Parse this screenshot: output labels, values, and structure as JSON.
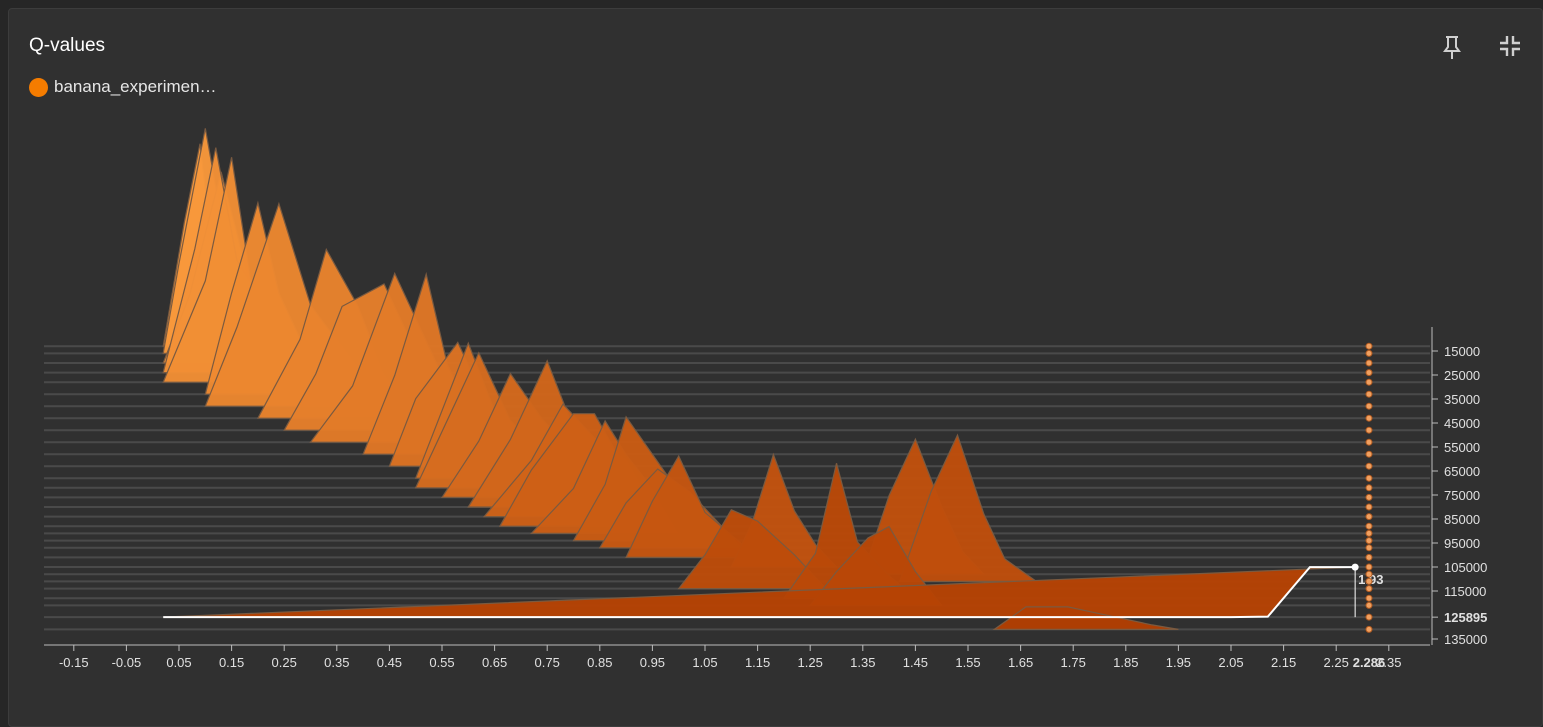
{
  "card": {
    "title": "Q-values",
    "legend_label": "banana_experimen…",
    "legend_color": "#f57c00"
  },
  "icons": {
    "pin": "pin-icon",
    "collapse": "collapse-icon"
  },
  "tooltip": {
    "value": "1.93",
    "step": "125895",
    "x_value": "2.286"
  },
  "chart_data": {
    "type": "area",
    "mode": "offset-histogram",
    "title": "Q-values",
    "xlim": [
      -0.2,
      2.4
    ],
    "x_ticks": [
      "-0.15",
      "-0.05",
      "0.05",
      "0.15",
      "0.25",
      "0.35",
      "0.45",
      "0.55",
      "0.65",
      "0.75",
      "0.85",
      "0.95",
      "1.05",
      "1.15",
      "1.25",
      "1.35",
      "1.45",
      "1.55",
      "1.65",
      "1.75",
      "1.85",
      "1.95",
      "2.05",
      "2.15",
      "2.25",
      "2.35"
    ],
    "step_ticks": [
      "15000",
      "25000",
      "35000",
      "45000",
      "55000",
      "65000",
      "75000",
      "85000",
      "95000",
      "105000",
      "115000",
      "125895",
      "135000"
    ],
    "step_range": [
      5000,
      135000
    ],
    "series": [
      {
        "step": 13000,
        "points": [
          [
            0.02,
            0
          ],
          [
            0.06,
            0.55
          ],
          [
            0.09,
            0.9
          ],
          [
            0.12,
            0.3
          ],
          [
            0.15,
            0.15
          ],
          [
            0.2,
            0.3
          ],
          [
            0.28,
            0
          ]
        ]
      },
      {
        "step": 16000,
        "points": [
          [
            0.02,
            0
          ],
          [
            0.05,
            0.4
          ],
          [
            0.1,
            1
          ],
          [
            0.15,
            0.35
          ],
          [
            0.2,
            0.2
          ],
          [
            0.25,
            0
          ]
        ]
      },
      {
        "step": 20000,
        "points": [
          [
            0.02,
            0
          ],
          [
            0.07,
            0.3
          ],
          [
            0.13,
            0.85
          ],
          [
            0.18,
            0.4
          ],
          [
            0.23,
            0.2
          ],
          [
            0.28,
            0
          ]
        ]
      },
      {
        "step": 24000,
        "points": [
          [
            0.02,
            0
          ],
          [
            0.08,
            0.55
          ],
          [
            0.12,
            1
          ],
          [
            0.16,
            0.5
          ],
          [
            0.2,
            0.35
          ],
          [
            0.27,
            0
          ]
        ]
      },
      {
        "step": 28000,
        "points": [
          [
            0.02,
            0
          ],
          [
            0.1,
            0.45
          ],
          [
            0.15,
            1
          ],
          [
            0.19,
            0.4
          ],
          [
            0.24,
            0.25
          ],
          [
            0.3,
            0
          ]
        ]
      },
      {
        "step": 33000,
        "points": [
          [
            0.1,
            0
          ],
          [
            0.15,
            0.45
          ],
          [
            0.2,
            0.85
          ],
          [
            0.24,
            0.45
          ],
          [
            0.29,
            0.2
          ],
          [
            0.34,
            0
          ]
        ]
      },
      {
        "step": 38000,
        "points": [
          [
            0.1,
            0
          ],
          [
            0.16,
            0.35
          ],
          [
            0.24,
            0.9
          ],
          [
            0.3,
            0.45
          ],
          [
            0.38,
            0.2
          ],
          [
            0.45,
            0
          ]
        ]
      },
      {
        "step": 43000,
        "points": [
          [
            0.2,
            0
          ],
          [
            0.28,
            0.35
          ],
          [
            0.33,
            0.75
          ],
          [
            0.39,
            0.5
          ],
          [
            0.44,
            0.2
          ],
          [
            0.5,
            0
          ]
        ]
      },
      {
        "step": 48000,
        "points": [
          [
            0.25,
            0
          ],
          [
            0.31,
            0.25
          ],
          [
            0.36,
            0.55
          ],
          [
            0.44,
            0.65
          ],
          [
            0.5,
            0.35
          ],
          [
            0.55,
            0
          ]
        ]
      },
      {
        "step": 53000,
        "points": [
          [
            0.3,
            0
          ],
          [
            0.38,
            0.25
          ],
          [
            0.46,
            0.75
          ],
          [
            0.5,
            0.55
          ],
          [
            0.55,
            0.3
          ],
          [
            0.6,
            0
          ]
        ]
      },
      {
        "step": 58000,
        "points": [
          [
            0.4,
            0
          ],
          [
            0.46,
            0.35
          ],
          [
            0.52,
            0.8
          ],
          [
            0.56,
            0.4
          ],
          [
            0.6,
            0.2
          ],
          [
            0.65,
            0
          ]
        ]
      },
      {
        "step": 63000,
        "points": [
          [
            0.45,
            0
          ],
          [
            0.5,
            0.3
          ],
          [
            0.58,
            0.55
          ],
          [
            0.62,
            0.35
          ],
          [
            0.66,
            0.15
          ],
          [
            0.7,
            0
          ]
        ]
      },
      {
        "step": 68000,
        "points": [
          [
            0.5,
            0
          ],
          [
            0.55,
            0.3
          ],
          [
            0.6,
            0.6
          ],
          [
            0.65,
            0.3
          ],
          [
            0.72,
            0.15
          ],
          [
            0.78,
            0
          ]
        ]
      },
      {
        "step": 72000,
        "points": [
          [
            0.5,
            0
          ],
          [
            0.56,
            0.3
          ],
          [
            0.62,
            0.6
          ],
          [
            0.68,
            0.3
          ],
          [
            0.74,
            0.15
          ],
          [
            0.8,
            0
          ]
        ]
      },
      {
        "step": 76000,
        "points": [
          [
            0.55,
            0
          ],
          [
            0.62,
            0.25
          ],
          [
            0.68,
            0.55
          ],
          [
            0.74,
            0.35
          ],
          [
            0.8,
            0.2
          ],
          [
            0.85,
            0
          ]
        ]
      },
      {
        "step": 80000,
        "points": [
          [
            0.6,
            0
          ],
          [
            0.68,
            0.3
          ],
          [
            0.75,
            0.65
          ],
          [
            0.8,
            0.35
          ],
          [
            0.86,
            0.2
          ],
          [
            0.92,
            0
          ]
        ]
      },
      {
        "step": 84000,
        "points": [
          [
            0.63,
            0
          ],
          [
            0.72,
            0.25
          ],
          [
            0.78,
            0.5
          ],
          [
            0.84,
            0.35
          ],
          [
            0.9,
            0.25
          ],
          [
            0.96,
            0
          ]
        ]
      },
      {
        "step": 88000,
        "points": [
          [
            0.66,
            0
          ],
          [
            0.72,
            0.25
          ],
          [
            0.8,
            0.5
          ],
          [
            0.84,
            0.5
          ],
          [
            0.9,
            0.25
          ],
          [
            0.96,
            0
          ]
        ]
      },
      {
        "step": 91000,
        "points": [
          [
            0.72,
            0
          ],
          [
            0.8,
            0.2
          ],
          [
            0.86,
            0.5
          ],
          [
            0.9,
            0.35
          ],
          [
            0.95,
            0.2
          ],
          [
            1.0,
            0
          ]
        ]
      },
      {
        "step": 94000,
        "points": [
          [
            0.8,
            0
          ],
          [
            0.86,
            0.25
          ],
          [
            0.9,
            0.55
          ],
          [
            0.96,
            0.35
          ],
          [
            1.02,
            0.15
          ],
          [
            1.08,
            0
          ]
        ]
      },
      {
        "step": 97000,
        "points": [
          [
            0.85,
            0
          ],
          [
            0.9,
            0.2
          ],
          [
            0.96,
            0.35
          ],
          [
            1.02,
            0.25
          ],
          [
            1.08,
            0.1
          ],
          [
            1.12,
            0
          ]
        ]
      },
      {
        "step": 101000,
        "points": [
          [
            0.9,
            0
          ],
          [
            0.95,
            0.25
          ],
          [
            1.0,
            0.45
          ],
          [
            1.05,
            0.2
          ],
          [
            1.1,
            0.1
          ],
          [
            1.15,
            0
          ]
        ]
      },
      {
        "step": 105000,
        "points": [
          [
            1.1,
            0
          ],
          [
            1.14,
            0.2
          ],
          [
            1.18,
            0.5
          ],
          [
            1.22,
            0.25
          ],
          [
            1.26,
            0.1
          ],
          [
            1.3,
            0
          ]
        ]
      },
      {
        "step": 108000,
        "points": [
          [
            1.35,
            0
          ],
          [
            1.4,
            0.35
          ],
          [
            1.45,
            0.6
          ],
          [
            1.5,
            0.3
          ],
          [
            1.54,
            0.1
          ],
          [
            1.58,
            0
          ]
        ]
      },
      {
        "step": 111000,
        "points": [
          [
            1.42,
            0
          ],
          [
            1.48,
            0.4
          ],
          [
            1.53,
            0.65
          ],
          [
            1.58,
            0.3
          ],
          [
            1.62,
            0.1
          ],
          [
            1.68,
            0
          ]
        ]
      },
      {
        "step": 114000,
        "points": [
          [
            1.0,
            0
          ],
          [
            1.05,
            0.15
          ],
          [
            1.1,
            0.35
          ],
          [
            1.15,
            0.3
          ],
          [
            1.22,
            0.15
          ],
          [
            1.28,
            0
          ]
        ]
      },
      {
        "step": 118000,
        "points": [
          [
            1.2,
            0
          ],
          [
            1.26,
            0.2
          ],
          [
            1.3,
            0.6
          ],
          [
            1.34,
            0.25
          ],
          [
            1.4,
            0.1
          ],
          [
            1.45,
            0
          ]
        ]
      },
      {
        "step": 121000,
        "points": [
          [
            1.25,
            0
          ],
          [
            1.3,
            0.15
          ],
          [
            1.36,
            0.3
          ],
          [
            1.4,
            0.35
          ],
          [
            1.45,
            0.15
          ],
          [
            1.5,
            0
          ]
        ]
      },
      {
        "step": 125895,
        "points": [
          [
            0.02,
            0
          ],
          [
            2.05,
            0
          ],
          [
            2.12,
            0.02
          ],
          [
            2.2,
            1.93
          ],
          [
            2.286,
            1.93
          ]
        ]
      },
      {
        "step": 131000,
        "points": [
          [
            1.6,
            0
          ],
          [
            1.66,
            0.1
          ],
          [
            1.74,
            0.1
          ],
          [
            1.82,
            0.06
          ],
          [
            1.9,
            0.02
          ],
          [
            1.95,
            0
          ]
        ]
      }
    ]
  }
}
